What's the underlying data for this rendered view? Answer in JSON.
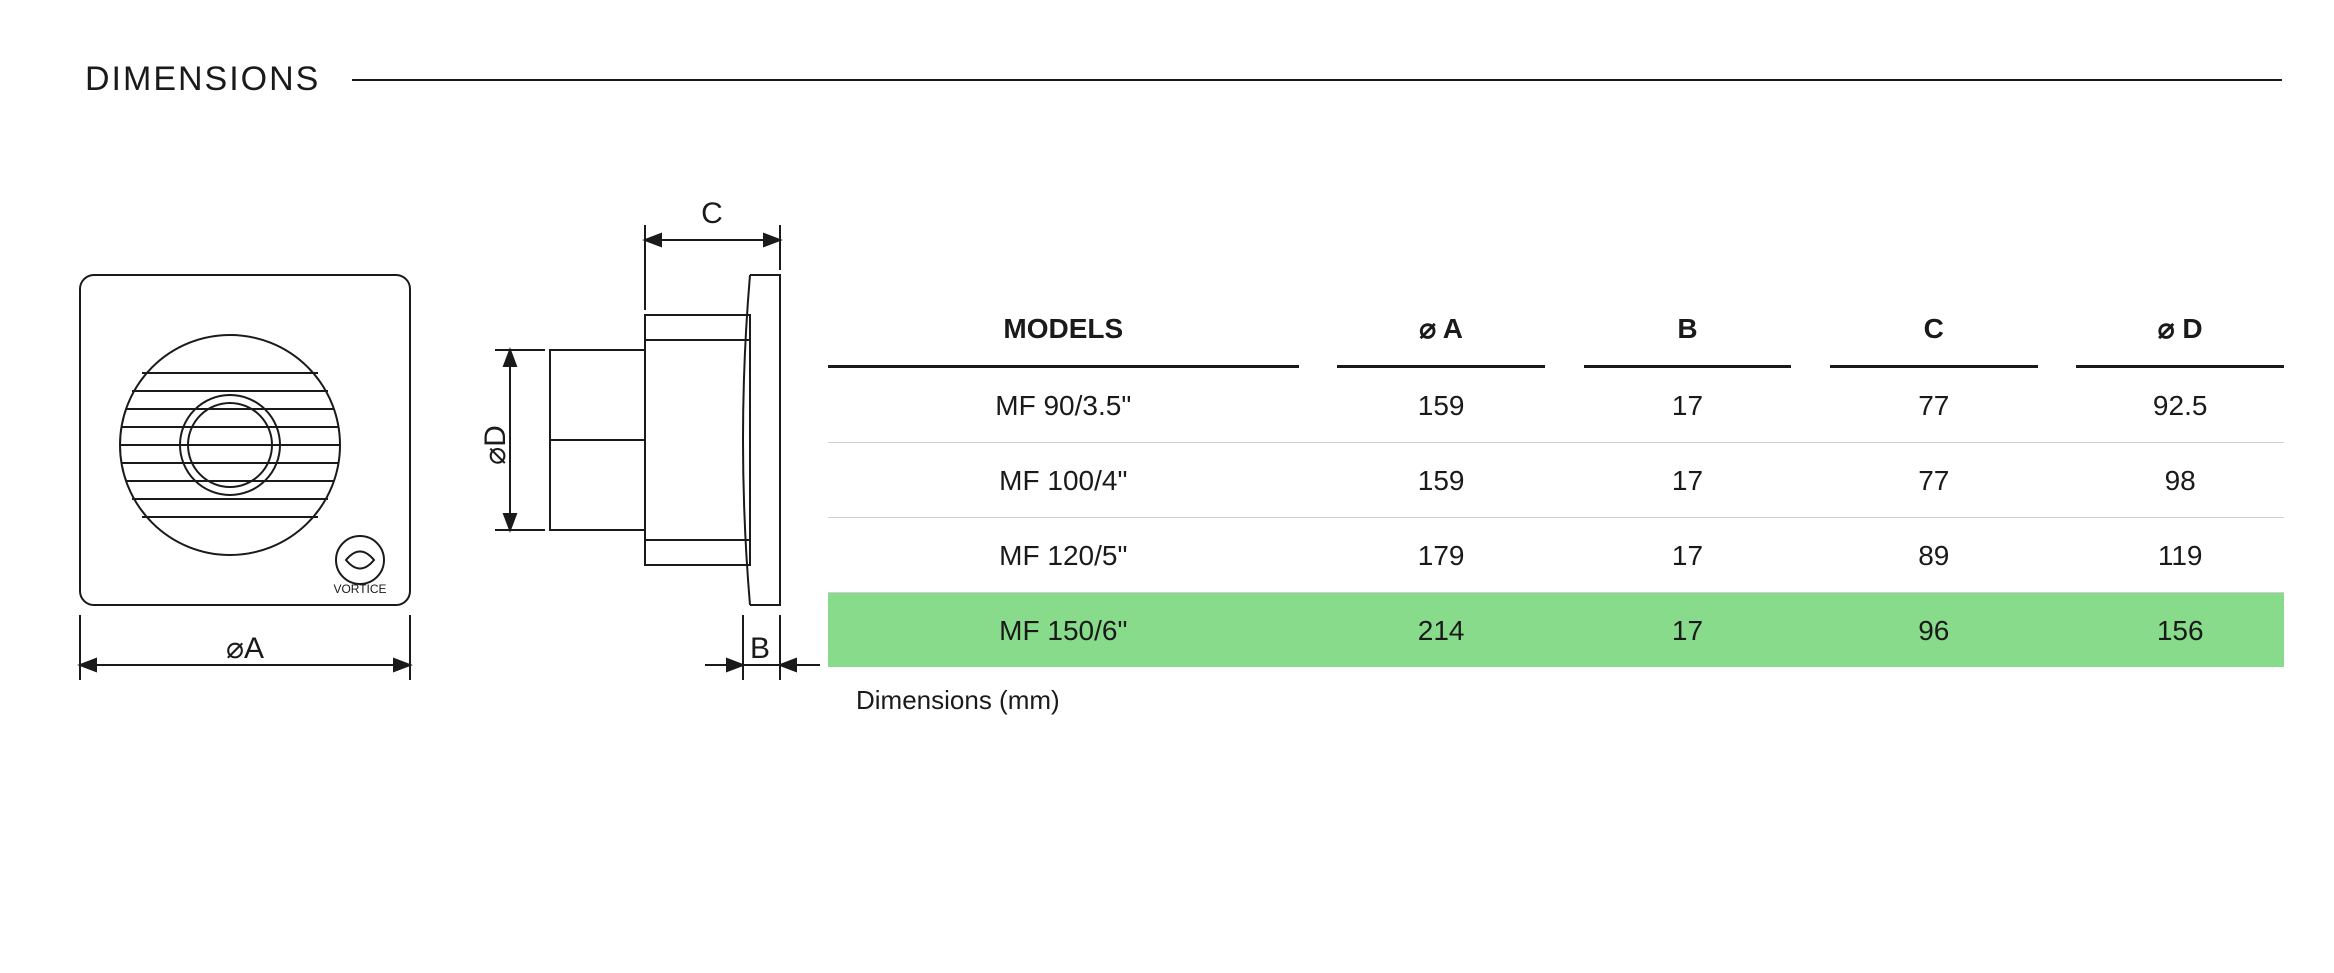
{
  "heading": "DIMENSIONS",
  "table": {
    "caption": "Dimensions (mm)",
    "columns": [
      "MODELS",
      "⌀ A",
      "B",
      "C",
      "⌀ D"
    ],
    "rows": [
      {
        "model": "MF 90/3.5\"",
        "a": "159",
        "b": "17",
        "c": "77",
        "d": "92.5",
        "highlight": false
      },
      {
        "model": "MF 100/4\"",
        "a": "159",
        "b": "17",
        "c": "77",
        "d": "98",
        "highlight": false
      },
      {
        "model": "MF 120/5\"",
        "a": "179",
        "b": "17",
        "c": "89",
        "d": "119",
        "highlight": false
      },
      {
        "model": "MF 150/6\"",
        "a": "214",
        "b": "17",
        "c": "96",
        "d": "156",
        "highlight": true
      }
    ],
    "highlight_color": "#87db8b",
    "header_border_color": "#1a1a1a",
    "row_border_color": "#cfcfcf",
    "font_size": 28
  },
  "diagram": {
    "labels": {
      "A": "⌀A",
      "B": "B",
      "C": "C",
      "D": "⌀D"
    },
    "brand": "VORTICE",
    "stroke_color": "#1a1a1a",
    "stroke_width": 2,
    "dimension_font_size": 30
  }
}
